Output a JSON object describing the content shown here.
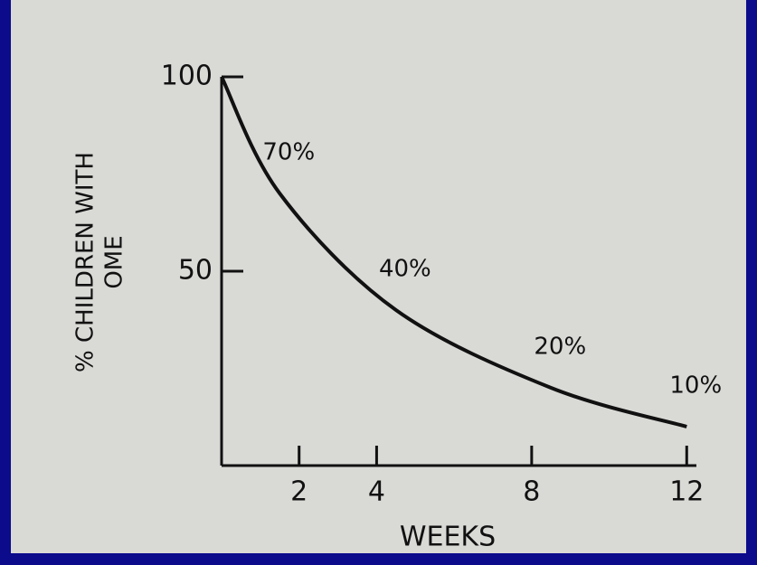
{
  "chart_data": {
    "type": "line",
    "ylabel": [
      "% CHILDREN WITH",
      "OME"
    ],
    "xlabel": "WEEKS",
    "x": [
      0,
      1.5,
      4.5,
      8.5,
      12
    ],
    "series": [
      {
        "name": null,
        "color": "#111111",
        "values": [
          100,
          70,
          40,
          20,
          10
        ],
        "value_labels": [
          null,
          "70%",
          "40%",
          "20%",
          "10%"
        ]
      }
    ],
    "xlim": [
      0,
      12.25
    ],
    "xticks": [
      2,
      4,
      8,
      12
    ],
    "ylim": [
      0,
      100
    ],
    "yticks": [
      50,
      100
    ]
  }
}
